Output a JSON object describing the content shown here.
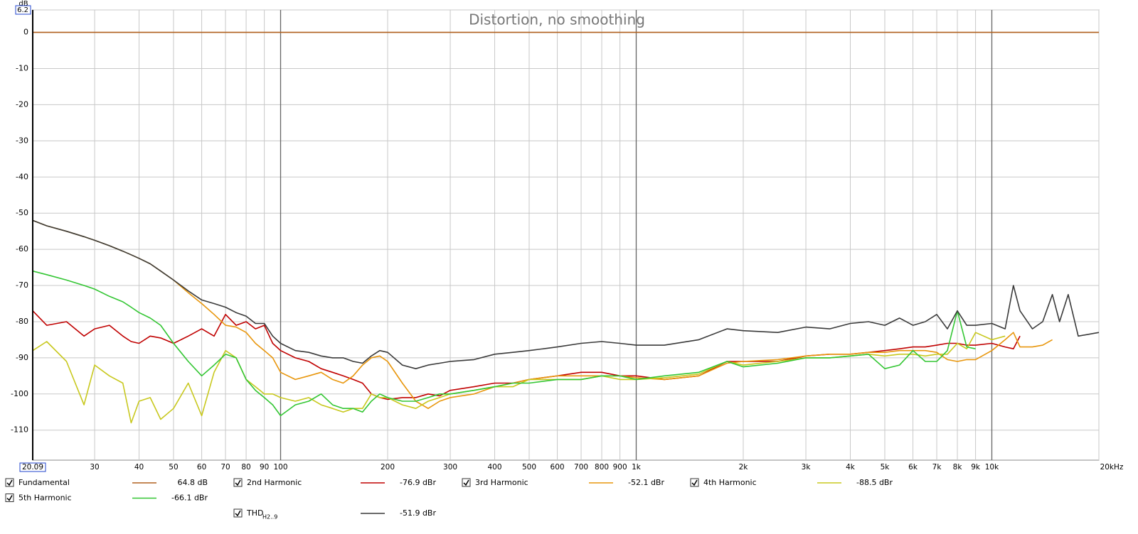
{
  "chart_data": {
    "type": "line",
    "title": "Distortion, no smoothing",
    "y_unit": "dB",
    "xscale": "log",
    "grid": true,
    "xlim": [
      20.09,
      20000
    ],
    "ylim": [
      -118.3,
      6.2
    ],
    "xticks": [
      20.09,
      30,
      40,
      50,
      60,
      70,
      80,
      90,
      100,
      200,
      300,
      400,
      500,
      600,
      700,
      800,
      900,
      {
        "value": 1000,
        "label": "1k"
      },
      {
        "value": 2000,
        "label": "2k"
      },
      {
        "value": 3000,
        "label": "3k"
      },
      {
        "value": 4000,
        "label": "4k"
      },
      {
        "value": 5000,
        "label": "5k"
      },
      {
        "value": 6000,
        "label": "6k"
      },
      {
        "value": 7000,
        "label": "7k"
      },
      {
        "value": 8000,
        "label": "8k"
      },
      {
        "value": 9000,
        "label": "9k"
      },
      {
        "value": 10000,
        "label": "10k"
      },
      {
        "value": 20000,
        "label": "20kHz"
      }
    ],
    "yticks": [
      6.2,
      0,
      -10,
      -20,
      -30,
      -40,
      -50,
      -60,
      -70,
      -80,
      -90,
      -100,
      -110
    ],
    "x": [
      20.09,
      22,
      25,
      28,
      30,
      33,
      36,
      38,
      40,
      43,
      46,
      50,
      55,
      60,
      65,
      70,
      75,
      80,
      85,
      90,
      95,
      100,
      110,
      120,
      130,
      140,
      150,
      160,
      170,
      180,
      190,
      200,
      220,
      240,
      260,
      280,
      300,
      350,
      400,
      450,
      500,
      600,
      700,
      800,
      900,
      1000,
      1200,
      1500,
      1800,
      2000,
      2500,
      3000,
      3500,
      4000,
      4500,
      5000,
      5500,
      6000,
      6500,
      7000,
      7500,
      8000,
      8500,
      9000,
      10000,
      10900,
      11500,
      12000,
      13000,
      13900,
      14800,
      15500,
      16400,
      17500,
      20000
    ],
    "series": [
      {
        "name": "Fundamental",
        "color": "#b0601e",
        "legend_value": "64.8 dB",
        "x": [
          20.09,
          20000
        ],
        "values": [
          0,
          0
        ]
      },
      {
        "name": "2nd Harmonic",
        "color": "#c00000",
        "legend_value": "-76.9 dBr",
        "values": [
          -77,
          -81,
          -80,
          -84,
          -82,
          -81,
          -84,
          -85.5,
          -86,
          -84,
          -84.5,
          -86,
          -84,
          -82,
          -84,
          -78,
          -81,
          -80,
          -82,
          -81,
          -86,
          -88,
          -90,
          -91,
          -93,
          -94,
          -95,
          -96,
          -97,
          -100,
          -101,
          -101.5,
          -101,
          -101,
          -100,
          -100.5,
          -99,
          -98,
          -97,
          -97,
          -96,
          -95,
          -94,
          -94,
          -95,
          -95,
          -96,
          -95,
          -91,
          -91,
          -91,
          -89.5,
          -89,
          -89,
          -88.5,
          -88,
          -87.5,
          -87,
          -87,
          -86.5,
          -86,
          -86,
          -86.5,
          -86.5,
          -86,
          -87,
          -87.5,
          -84,
          null,
          null,
          null,
          null,
          null,
          null,
          null
        ]
      },
      {
        "name": "3rd Harmonic",
        "color": "#e8960c",
        "legend_value": "-52.1 dBr",
        "values": [
          -52,
          -53.5,
          -55,
          -56.5,
          -57.5,
          -59,
          -60.5,
          -61.5,
          -62.5,
          -64,
          -66,
          -68.5,
          -72,
          -75,
          -78,
          -81,
          -81.5,
          -83,
          -86,
          -88,
          -90,
          -94,
          -96,
          -95,
          -94,
          -96,
          -97,
          -95,
          -92,
          -90,
          -89.5,
          -91,
          -97,
          -102,
          -104,
          -102,
          -101,
          -100,
          -98,
          -97,
          -96,
          -95,
          -95,
          -95,
          -95,
          -95.5,
          -96,
          -95,
          -91.5,
          -91,
          -90.5,
          -89.5,
          -89,
          -89,
          -88.5,
          -88.5,
          -88,
          -88,
          -88,
          -88.5,
          -90.5,
          -91,
          -90.5,
          -90.5,
          -88,
          -85,
          -83,
          -87,
          -87,
          -86.5,
          -85,
          null,
          null,
          null,
          null
        ]
      },
      {
        "name": "4th Harmonic",
        "color": "#c8c81e",
        "legend_value": "-88.5 dBr",
        "values": [
          -88,
          -85.5,
          -91,
          -103,
          -92,
          -95,
          -97,
          -108,
          -102,
          -101,
          -107,
          -104,
          -97,
          -106,
          -94,
          -88,
          -90,
          -96,
          -98,
          -100,
          -100,
          -101,
          -102,
          -101,
          -103,
          -104,
          -105,
          -104,
          -104,
          -100,
          -101,
          -101,
          -103,
          -104,
          -102,
          -101,
          -100,
          -99,
          -98,
          -98,
          -96,
          -96,
          -96,
          -95,
          -96,
          -96,
          -95.5,
          -94.5,
          -91,
          -92,
          -91,
          -90,
          -90,
          -89.5,
          -89,
          -89.5,
          -89,
          -89,
          -89.5,
          -89,
          -89,
          -86,
          -87.5,
          -83,
          -85,
          -84,
          null,
          null,
          null,
          null,
          null,
          null,
          null,
          null,
          null
        ]
      },
      {
        "name": "5th Harmonic",
        "color": "#33c633",
        "legend_value": "-66.1 dBr",
        "values": [
          -66,
          -67,
          -68.5,
          -70,
          -71,
          -73,
          -74.5,
          -76,
          -77.5,
          -79,
          -81,
          -86,
          -91,
          -95,
          -92,
          -89,
          -90,
          -96,
          -99,
          -101,
          -103,
          -106,
          -103,
          -102,
          -100,
          -103,
          -104,
          -104,
          -105,
          -102,
          -100,
          -101,
          -102,
          -102,
          -101,
          -100,
          -100,
          -99,
          -98,
          -97,
          -97,
          -96,
          -96,
          -95,
          -95,
          -96,
          -95,
          -94,
          -91,
          -92.5,
          -91.5,
          -90,
          -90,
          -89.5,
          -89,
          -93,
          -92,
          -88,
          -91,
          -91,
          -88,
          -77,
          -87,
          -87.5,
          null,
          null,
          null,
          null,
          null,
          null,
          null,
          null,
          null,
          null,
          null
        ]
      },
      {
        "name": "THD",
        "name_sub": "H2..9",
        "color": "#3a3a3a",
        "legend_value": "-51.9 dBr",
        "values": [
          -52,
          -53.5,
          -55,
          -56.5,
          -57.5,
          -59,
          -60.5,
          -61.5,
          -62.5,
          -64,
          -66,
          -68.5,
          -71.5,
          -74,
          -75,
          -76,
          -77.5,
          -78.5,
          -80.5,
          -80.5,
          -84,
          -86,
          -88,
          -88.5,
          -89.5,
          -90,
          -90,
          -91,
          -91.5,
          -89.5,
          -88,
          -88.5,
          -92,
          -93,
          -92,
          -91.5,
          -91,
          -90.5,
          -89,
          -88.5,
          -88,
          -87,
          -86,
          -85.5,
          -86,
          -86.5,
          -86.5,
          -85,
          -82,
          -82.5,
          -83,
          -81.5,
          -82,
          -80.5,
          -80,
          -81,
          -79,
          -81,
          -80,
          -78,
          -82,
          -77,
          -81,
          -81,
          -80.5,
          -82,
          -70,
          -77,
          -82,
          -80,
          -72.5,
          -80,
          -72.5,
          -84,
          -83
        ]
      }
    ]
  }
}
